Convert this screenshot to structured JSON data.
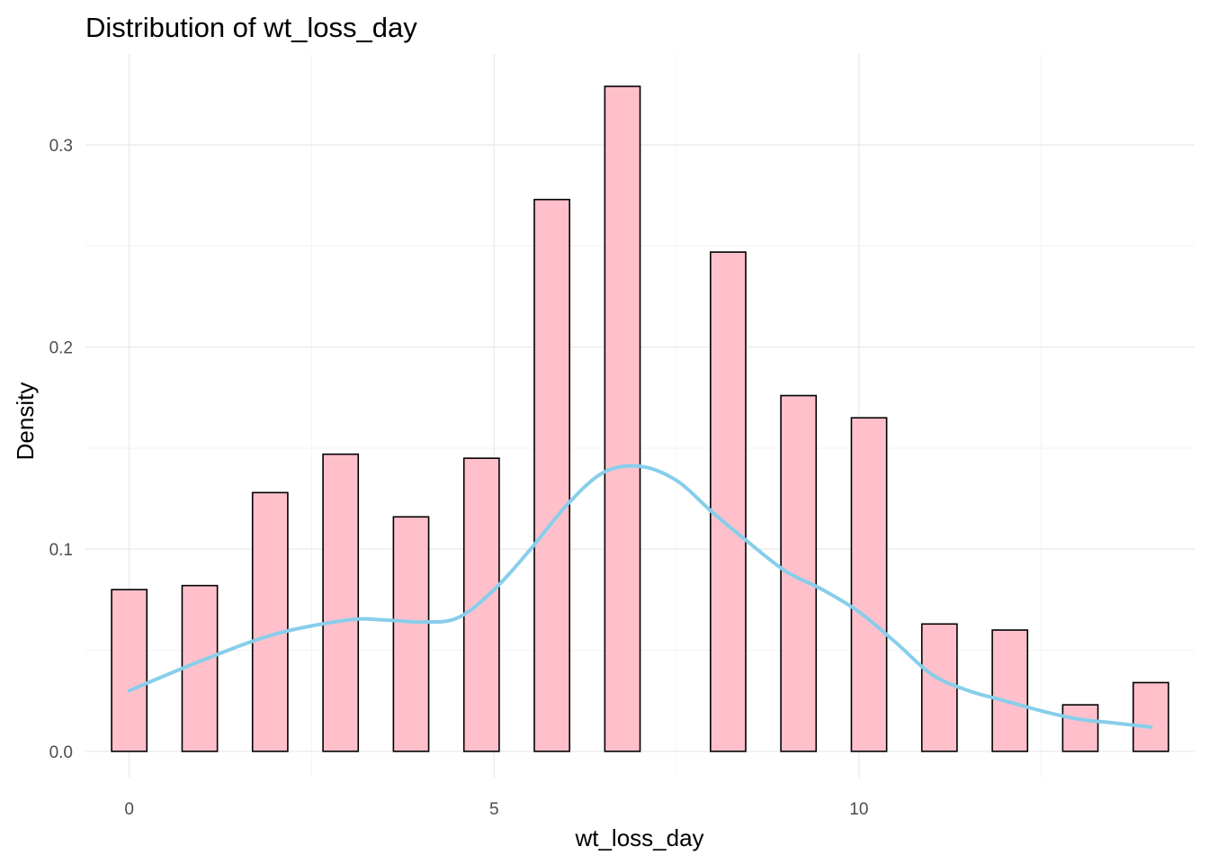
{
  "chart_data": {
    "type": "bar",
    "title": "Distribution of wt_loss_day",
    "xlabel": "wt_loss_day",
    "ylabel": "Density",
    "xlim": [
      -0.6,
      14.6
    ],
    "ylim": [
      -0.013,
      0.345
    ],
    "xticks": [
      0,
      5,
      10
    ],
    "xtick_labels": [
      "0",
      "5",
      "10"
    ],
    "yticks": [
      0.0,
      0.1,
      0.2,
      0.3
    ],
    "ytick_labels": [
      "0.0",
      "0.1",
      "0.2",
      "0.3"
    ],
    "grid": true,
    "legend": "none",
    "bar_color": "#ffc0cb",
    "bar_edge_color": "#000000",
    "density_color": "#87ceeb",
    "bin_width": 0.483,
    "bins": [
      {
        "x": 0.0,
        "value": 0.08
      },
      {
        "x": 0.966,
        "value": 0.082
      },
      {
        "x": 1.931,
        "value": 0.128
      },
      {
        "x": 2.897,
        "value": 0.147
      },
      {
        "x": 3.862,
        "value": 0.116
      },
      {
        "x": 4.828,
        "value": 0.145
      },
      {
        "x": 5.793,
        "value": 0.273
      },
      {
        "x": 6.759,
        "value": 0.329
      },
      {
        "x": 8.207,
        "value": 0.247
      },
      {
        "x": 9.172,
        "value": 0.176
      },
      {
        "x": 10.138,
        "value": 0.165
      },
      {
        "x": 11.103,
        "value": 0.063
      },
      {
        "x": 12.069,
        "value": 0.06
      },
      {
        "x": 13.034,
        "value": 0.023
      },
      {
        "x": 14.0,
        "value": 0.034
      }
    ],
    "density": {
      "x": [
        0,
        1,
        2,
        3,
        3.5,
        4,
        4.5,
        5,
        5.5,
        6,
        6.5,
        7,
        7.5,
        8,
        8.5,
        9,
        9.5,
        10,
        10.5,
        11,
        11.5,
        12,
        12.5,
        13,
        13.5,
        14
      ],
      "y": [
        0.03,
        0.045,
        0.058,
        0.065,
        0.065,
        0.064,
        0.066,
        0.08,
        0.1,
        0.122,
        0.138,
        0.141,
        0.134,
        0.118,
        0.103,
        0.089,
        0.08,
        0.069,
        0.054,
        0.038,
        0.03,
        0.025,
        0.02,
        0.016,
        0.014,
        0.012
      ]
    }
  }
}
